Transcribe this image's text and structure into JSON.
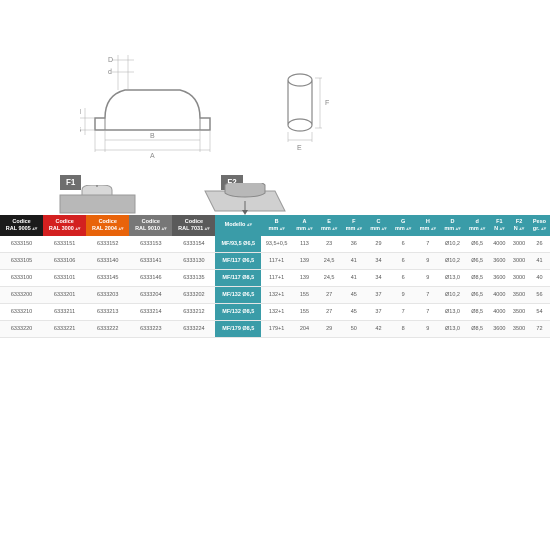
{
  "diagram": {
    "labels": {
      "D": "D",
      "d": "d",
      "H": "H",
      "G": "G",
      "B": "B",
      "A": "A",
      "F": "F",
      "E": "E"
    },
    "force1": "F1",
    "force2": "F2"
  },
  "headers": [
    {
      "l1": "Codice",
      "l2": "RAL 9005",
      "cls": "black"
    },
    {
      "l1": "Codice",
      "l2": "RAL 3000",
      "cls": "red"
    },
    {
      "l1": "Codice",
      "l2": "RAL 2004",
      "cls": "orange"
    },
    {
      "l1": "Codice",
      "l2": "RAL 9010",
      "cls": "gray"
    },
    {
      "l1": "Codice",
      "l2": "RAL 7031",
      "cls": "dgray"
    },
    {
      "l1": "Modello",
      "l2": "",
      "cls": "teal"
    },
    {
      "l1": "B",
      "l2": "mm",
      "cls": "teal"
    },
    {
      "l1": "A",
      "l2": "mm",
      "cls": "teal"
    },
    {
      "l1": "E",
      "l2": "mm",
      "cls": "teal"
    },
    {
      "l1": "F",
      "l2": "mm",
      "cls": "teal"
    },
    {
      "l1": "C",
      "l2": "mm",
      "cls": "teal"
    },
    {
      "l1": "G",
      "l2": "mm",
      "cls": "teal"
    },
    {
      "l1": "H",
      "l2": "mm",
      "cls": "teal"
    },
    {
      "l1": "D",
      "l2": "mm",
      "cls": "teal"
    },
    {
      "l1": "d",
      "l2": "mm",
      "cls": "teal"
    },
    {
      "l1": "F1",
      "l2": "N",
      "cls": "teal"
    },
    {
      "l1": "F2",
      "l2": "N",
      "cls": "teal"
    },
    {
      "l1": "Peso",
      "l2": "gr.",
      "cls": "teal"
    }
  ],
  "rows": [
    [
      "6333150",
      "6333151",
      "6333152",
      "6333153",
      "6333154",
      "MF/93,5 Ø6,5",
      "93,5+0,5",
      "113",
      "23",
      "36",
      "29",
      "6",
      "7",
      "Ø10,2",
      "Ø6,5",
      "4000",
      "3000",
      "26"
    ],
    [
      "6333105",
      "6333106",
      "6333140",
      "6333141",
      "6333130",
      "MF/117 Ø6,5",
      "117+1",
      "139",
      "24,5",
      "41",
      "34",
      "6",
      "9",
      "Ø10,2",
      "Ø6,5",
      "3600",
      "3000",
      "41"
    ],
    [
      "6333100",
      "6333101",
      "6333145",
      "6333146",
      "6333135",
      "MF/117 Ø8,5",
      "117+1",
      "139",
      "24,5",
      "41",
      "34",
      "6",
      "9",
      "Ø13,0",
      "Ø8,5",
      "3600",
      "3000",
      "40"
    ],
    [
      "6333200",
      "6333201",
      "6333203",
      "6333204",
      "6333202",
      "MF/132 Ø6,5",
      "132+1",
      "155",
      "27",
      "45",
      "37",
      "9",
      "7",
      "Ø10,2",
      "Ø6,5",
      "4000",
      "3500",
      "56"
    ],
    [
      "6333210",
      "6333211",
      "6333213",
      "6333214",
      "6333212",
      "MF/132 Ø8,5",
      "132+1",
      "155",
      "27",
      "45",
      "37",
      "7",
      "7",
      "Ø13,0",
      "Ø8,5",
      "4000",
      "3500",
      "54"
    ],
    [
      "6333220",
      "6333221",
      "6333222",
      "6333223",
      "6333224",
      "MF/179 Ø8,5",
      "179+1",
      "204",
      "29",
      "50",
      "42",
      "8",
      "9",
      "Ø13,0",
      "Ø8,5",
      "3600",
      "3500",
      "72"
    ]
  ]
}
